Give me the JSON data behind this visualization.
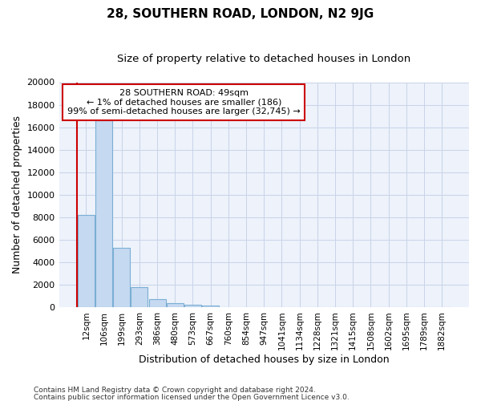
{
  "title": "28, SOUTHERN ROAD, LONDON, N2 9JG",
  "subtitle": "Size of property relative to detached houses in London",
  "xlabel": "Distribution of detached houses by size in London",
  "ylabel": "Number of detached properties",
  "categories": [
    "12sqm",
    "106sqm",
    "199sqm",
    "293sqm",
    "386sqm",
    "480sqm",
    "573sqm",
    "667sqm",
    "760sqm",
    "854sqm",
    "947sqm",
    "1041sqm",
    "1134sqm",
    "1228sqm",
    "1321sqm",
    "1415sqm",
    "1508sqm",
    "1602sqm",
    "1695sqm",
    "1789sqm",
    "1882sqm"
  ],
  "values": [
    8200,
    16600,
    5300,
    1750,
    700,
    310,
    200,
    150,
    0,
    0,
    0,
    0,
    0,
    0,
    0,
    0,
    0,
    0,
    0,
    0,
    0
  ],
  "bar_color": "#c5d9f1",
  "bar_edge_color": "#7bafd4",
  "property_line_color": "#cc0000",
  "property_line_x": -0.5,
  "annotation_line1": "28 SOUTHERN ROAD: 49sqm",
  "annotation_line2": "← 1% of detached houses are smaller (186)",
  "annotation_line3": "99% of semi-detached houses are larger (32,745) →",
  "annotation_box_color": "#ffffff",
  "annotation_box_edge_color": "#cc0000",
  "ylim": [
    0,
    20000
  ],
  "yticks": [
    0,
    2000,
    4000,
    6000,
    8000,
    10000,
    12000,
    14000,
    16000,
    18000,
    20000
  ],
  "footer_line1": "Contains HM Land Registry data © Crown copyright and database right 2024.",
  "footer_line2": "Contains public sector information licensed under the Open Government Licence v3.0.",
  "bg_color": "#edf2fb",
  "grid_color": "#c8d4e8",
  "title_fontsize": 11,
  "subtitle_fontsize": 9.5,
  "axis_label_fontsize": 9,
  "tick_fontsize": 7.5,
  "footer_fontsize": 6.5
}
